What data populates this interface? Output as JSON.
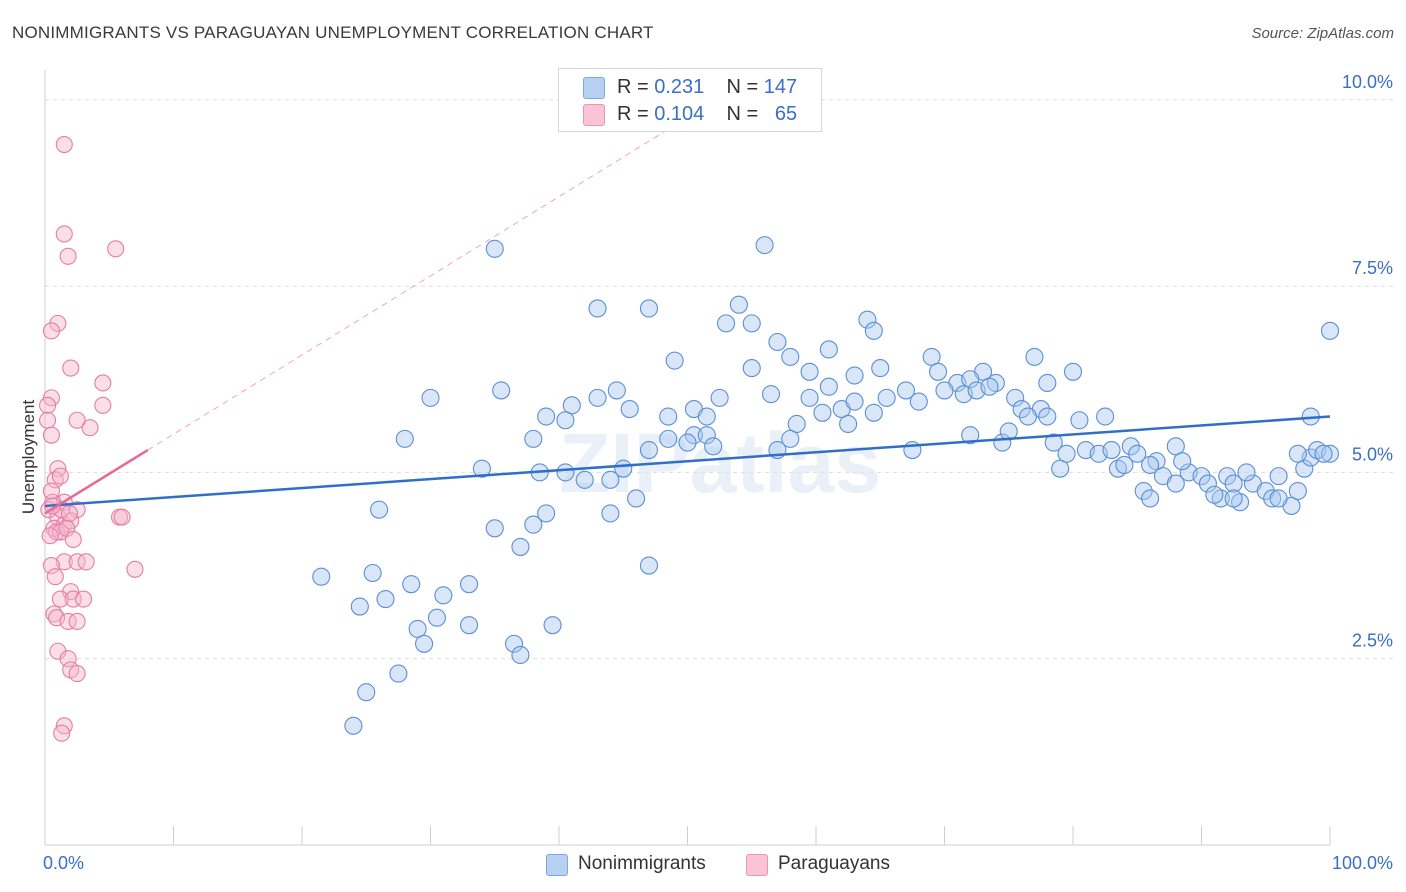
{
  "title": "NONIMMIGRANTS VS PARAGUAYAN UNEMPLOYMENT CORRELATION CHART",
  "source": "Source: ZipAtlas.com",
  "watermark": "ZIPatlas",
  "colors": {
    "blue_fill": "#a8c8f0",
    "blue_stroke": "#5b8fd6",
    "blue_line": "#2f6fc7",
    "pink_fill": "#f6b6cc",
    "pink_stroke": "#e47ea3",
    "pink_line": "#e26b97",
    "axis_text_blue": "#3a6fc4",
    "grid": "#dcdcdc"
  },
  "legend": {
    "r_label": "R =",
    "n_label": "N =",
    "series": [
      {
        "name": "Nonimmigrants",
        "r": "0.231",
        "n": "147"
      },
      {
        "name": "Paraguayans",
        "r": "0.104",
        "n": "65"
      }
    ]
  },
  "chart_data": {
    "type": "scatter",
    "title": "NONIMMIGRANTS VS PARAGUAYAN UNEMPLOYMENT CORRELATION CHART",
    "xlabel": "",
    "ylabel": "Unemployment",
    "xlim": [
      0,
      100
    ],
    "ylim": [
      0,
      10.4
    ],
    "x_tick_labels": [
      "0.0%",
      "100.0%"
    ],
    "y_ticks": [
      2.5,
      5.0,
      7.5,
      10.0
    ],
    "y_tick_labels": [
      "2.5%",
      "5.0%",
      "7.5%",
      "10.0%"
    ],
    "grid": true,
    "series": [
      {
        "name": "Nonimmigrants",
        "trendline": {
          "x": [
            0,
            100
          ],
          "y": [
            4.55,
            5.75
          ]
        },
        "points": [
          [
            35,
            8.0
          ],
          [
            56,
            8.05
          ],
          [
            43,
            7.2
          ],
          [
            47,
            7.2
          ],
          [
            54,
            7.25
          ],
          [
            53,
            7.0
          ],
          [
            55,
            7.0
          ],
          [
            64,
            7.05
          ],
          [
            64.5,
            6.9
          ],
          [
            57,
            6.75
          ],
          [
            61,
            6.65
          ],
          [
            49,
            6.5
          ],
          [
            58,
            6.55
          ],
          [
            59.5,
            6.35
          ],
          [
            55,
            6.4
          ],
          [
            65,
            6.4
          ],
          [
            69,
            6.55
          ],
          [
            73,
            6.35
          ],
          [
            69.5,
            6.35
          ],
          [
            71,
            6.2
          ],
          [
            72,
            6.25
          ],
          [
            74,
            6.2
          ],
          [
            77,
            6.55
          ],
          [
            80,
            6.35
          ],
          [
            78,
            6.2
          ],
          [
            63,
            6.3
          ],
          [
            61,
            6.15
          ],
          [
            56.5,
            6.05
          ],
          [
            52.5,
            6.0
          ],
          [
            59.5,
            6.0
          ],
          [
            62,
            5.85
          ],
          [
            65.5,
            6.0
          ],
          [
            67,
            6.1
          ],
          [
            68,
            5.95
          ],
          [
            63,
            5.95
          ],
          [
            64.5,
            5.8
          ],
          [
            71.5,
            6.05
          ],
          [
            72.5,
            6.1
          ],
          [
            75.5,
            6.0
          ],
          [
            76,
            5.85
          ],
          [
            77.5,
            5.85
          ],
          [
            70,
            6.1
          ],
          [
            73.5,
            6.15
          ],
          [
            30,
            6.0
          ],
          [
            35.5,
            6.1
          ],
          [
            44.5,
            6.1
          ],
          [
            41,
            5.9
          ],
          [
            43,
            6.0
          ],
          [
            45.5,
            5.85
          ],
          [
            50.5,
            5.85
          ],
          [
            51.5,
            5.75
          ],
          [
            48.5,
            5.75
          ],
          [
            39,
            5.75
          ],
          [
            40.5,
            5.7
          ],
          [
            58.5,
            5.65
          ],
          [
            60.5,
            5.8
          ],
          [
            62.5,
            5.65
          ],
          [
            28,
            5.45
          ],
          [
            38,
            5.45
          ],
          [
            48.5,
            5.45
          ],
          [
            50.5,
            5.5
          ],
          [
            51.5,
            5.5
          ],
          [
            52,
            5.35
          ],
          [
            58,
            5.45
          ],
          [
            67.5,
            5.3
          ],
          [
            72,
            5.5
          ],
          [
            74.5,
            5.4
          ],
          [
            75,
            5.55
          ],
          [
            78.5,
            5.4
          ],
          [
            57,
            5.3
          ],
          [
            47,
            5.3
          ],
          [
            50,
            5.4
          ],
          [
            45,
            5.05
          ],
          [
            34,
            5.05
          ],
          [
            38.5,
            5.0
          ],
          [
            40.5,
            5.0
          ],
          [
            42,
            4.9
          ],
          [
            44,
            4.9
          ],
          [
            46,
            4.65
          ],
          [
            44,
            4.45
          ],
          [
            39,
            4.45
          ],
          [
            38,
            4.3
          ],
          [
            35,
            4.25
          ],
          [
            37,
            4.0
          ],
          [
            47,
            3.75
          ],
          [
            26,
            4.5
          ],
          [
            21.5,
            3.6
          ],
          [
            25.5,
            3.65
          ],
          [
            26.5,
            3.3
          ],
          [
            28.5,
            3.5
          ],
          [
            31,
            3.35
          ],
          [
            33,
            3.5
          ],
          [
            24.5,
            3.2
          ],
          [
            30.5,
            3.05
          ],
          [
            29,
            2.9
          ],
          [
            33,
            2.95
          ],
          [
            36.5,
            2.7
          ],
          [
            39.5,
            2.95
          ],
          [
            37,
            2.55
          ],
          [
            29.5,
            2.7
          ],
          [
            27.5,
            2.3
          ],
          [
            25,
            2.05
          ],
          [
            24,
            1.6
          ],
          [
            79,
            5.05
          ],
          [
            79.5,
            5.25
          ],
          [
            81,
            5.3
          ],
          [
            82,
            5.25
          ],
          [
            83,
            5.3
          ],
          [
            83.5,
            5.05
          ],
          [
            84.5,
            5.35
          ],
          [
            85,
            5.25
          ],
          [
            86.5,
            5.15
          ],
          [
            85.5,
            4.75
          ],
          [
            86,
            4.65
          ],
          [
            87,
            4.95
          ],
          [
            88,
            5.35
          ],
          [
            89,
            5.0
          ],
          [
            88.5,
            5.15
          ],
          [
            90,
            4.95
          ],
          [
            90.5,
            4.85
          ],
          [
            91.5,
            4.65
          ],
          [
            92,
            4.95
          ],
          [
            92.5,
            4.85
          ],
          [
            93,
            4.6
          ],
          [
            94,
            4.85
          ],
          [
            95,
            4.75
          ],
          [
            95.5,
            4.65
          ],
          [
            96,
            4.95
          ],
          [
            97,
            4.55
          ],
          [
            97.5,
            4.75
          ],
          [
            98,
            5.05
          ],
          [
            98.5,
            5.2
          ],
          [
            99,
            5.3
          ],
          [
            100,
            5.25
          ],
          [
            86,
            5.1
          ],
          [
            88,
            4.85
          ],
          [
            92.5,
            4.65
          ],
          [
            96,
            4.65
          ],
          [
            97.5,
            5.25
          ],
          [
            99.5,
            5.25
          ],
          [
            98.5,
            5.75
          ],
          [
            100,
            6.9
          ],
          [
            93.5,
            5.0
          ],
          [
            91,
            4.7
          ],
          [
            84,
            5.1
          ],
          [
            82.5,
            5.75
          ],
          [
            80.5,
            5.7
          ],
          [
            78,
            5.75
          ],
          [
            76.5,
            5.75
          ]
        ]
      },
      {
        "name": "Paraguayans",
        "trendline": {
          "x": [
            0,
            8
          ],
          "y": [
            4.45,
            5.3
          ]
        },
        "points": [
          [
            1.5,
            9.4
          ],
          [
            1.5,
            8.2
          ],
          [
            1.8,
            7.9
          ],
          [
            5.5,
            8.0
          ],
          [
            1.0,
            7.0
          ],
          [
            0.5,
            6.9
          ],
          [
            2.0,
            6.4
          ],
          [
            4.5,
            6.2
          ],
          [
            0.5,
            6.0
          ],
          [
            0.2,
            5.9
          ],
          [
            0.2,
            5.7
          ],
          [
            3.5,
            5.6
          ],
          [
            2.5,
            5.7
          ],
          [
            4.5,
            5.9
          ],
          [
            0.5,
            5.5
          ],
          [
            1.0,
            5.05
          ],
          [
            0.8,
            4.9
          ],
          [
            1.2,
            4.95
          ],
          [
            1.5,
            4.6
          ],
          [
            0.6,
            4.6
          ],
          [
            2.5,
            4.5
          ],
          [
            0.3,
            4.5
          ],
          [
            1.0,
            4.4
          ],
          [
            1.5,
            4.3
          ],
          [
            2.0,
            4.35
          ],
          [
            0.7,
            4.25
          ],
          [
            0.9,
            4.2
          ],
          [
            1.2,
            4.2
          ],
          [
            1.7,
            4.25
          ],
          [
            0.4,
            4.15
          ],
          [
            2.2,
            4.1
          ],
          [
            5.8,
            4.4
          ],
          [
            6.0,
            4.4
          ],
          [
            1.5,
            3.8
          ],
          [
            0.5,
            3.75
          ],
          [
            2.5,
            3.8
          ],
          [
            3.2,
            3.8
          ],
          [
            7.0,
            3.7
          ],
          [
            0.8,
            3.6
          ],
          [
            2.0,
            3.4
          ],
          [
            1.2,
            3.3
          ],
          [
            2.2,
            3.3
          ],
          [
            3.0,
            3.3
          ],
          [
            0.7,
            3.1
          ],
          [
            0.9,
            3.05
          ],
          [
            1.8,
            3.0
          ],
          [
            2.5,
            3.0
          ],
          [
            1.0,
            2.6
          ],
          [
            1.8,
            2.5
          ],
          [
            2.0,
            2.35
          ],
          [
            2.5,
            2.3
          ],
          [
            1.5,
            1.6
          ],
          [
            1.3,
            1.5
          ],
          [
            0.5,
            4.75
          ],
          [
            1.3,
            4.5
          ],
          [
            0.6,
            4.55
          ],
          [
            1.9,
            4.45
          ]
        ]
      }
    ]
  }
}
